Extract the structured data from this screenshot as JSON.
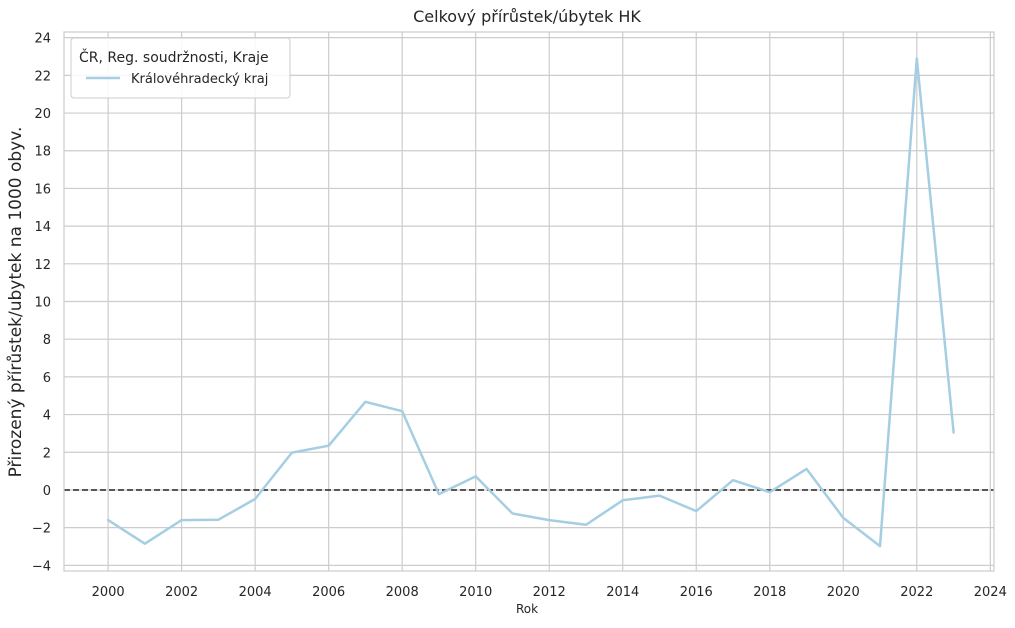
{
  "chart_data": {
    "type": "line",
    "title": "Celkový přírůstek/úbytek HK",
    "xlabel": "Rok",
    "ylabel": "Přirozený přírůstek/ubytek na 1000 obyv.",
    "xlim": [
      1998.8,
      2024.1
    ],
    "ylim": [
      -4.3,
      24.3
    ],
    "xticks": [
      2000,
      2002,
      2004,
      2006,
      2008,
      2010,
      2012,
      2014,
      2016,
      2018,
      2020,
      2022,
      2024
    ],
    "yticks": [
      -4,
      -2,
      0,
      2,
      4,
      6,
      8,
      10,
      12,
      14,
      16,
      18,
      20,
      22,
      24
    ],
    "grid": true,
    "reference_line": {
      "y": 0,
      "style": "dashed",
      "color": "#222222"
    },
    "legend": {
      "title": "ČR, Reg. soudržnosti, Kraje",
      "position": "top-left"
    },
    "series": [
      {
        "name": "Královéhradecký kraj",
        "color": "#a6cee3",
        "x": [
          2000,
          2001,
          2002,
          2003,
          2004,
          2005,
          2006,
          2007,
          2008,
          2009,
          2010,
          2011,
          2012,
          2013,
          2014,
          2015,
          2016,
          2017,
          2018,
          2019,
          2020,
          2021,
          2022,
          2023
        ],
        "y": [
          -1.6,
          -2.85,
          -1.6,
          -1.58,
          -0.48,
          1.98,
          2.35,
          4.68,
          4.18,
          -0.22,
          0.72,
          -1.25,
          -1.6,
          -1.85,
          -0.55,
          -0.3,
          -1.12,
          0.52,
          -0.12,
          1.12,
          -1.48,
          -2.98,
          22.9,
          3.05
        ]
      }
    ]
  }
}
